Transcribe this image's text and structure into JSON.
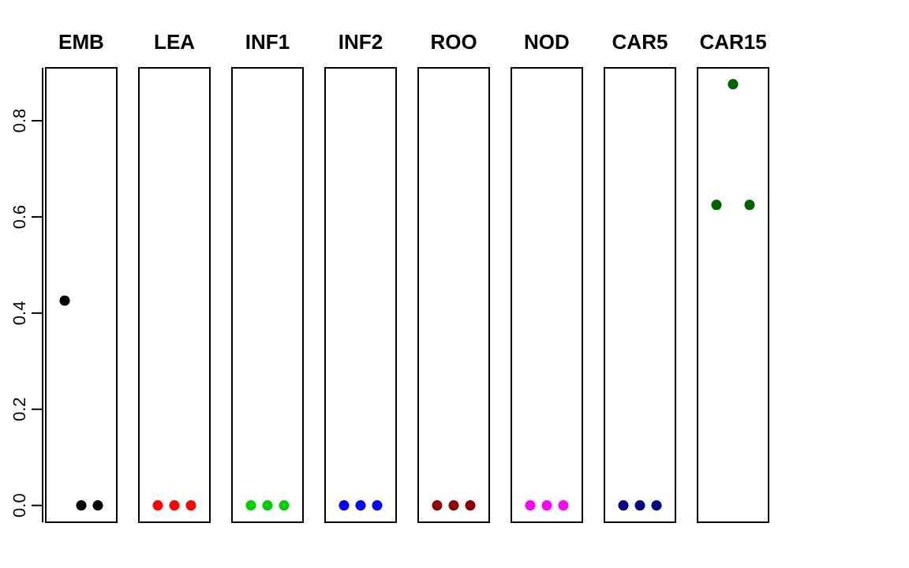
{
  "chart_data": {
    "type": "scatter",
    "categories": [
      "EMB",
      "LEA",
      "INF1",
      "INF2",
      "ROO",
      "NOD",
      "CAR5",
      "CAR15"
    ],
    "series": [
      {
        "colors": [
          "#000000",
          "#ff0000",
          "#00cd00",
          "#0000ff",
          "#8b0000",
          "#ff00ff",
          "#000080",
          "#006400"
        ],
        "values": [
          0.426,
          0,
          0,
          0,
          0,
          0,
          0,
          0.625
        ]
      },
      {
        "colors": [
          "#000000",
          "#ff0000",
          "#00cd00",
          "#0000ff",
          "#8b0000",
          "#ff00ff",
          "#000080",
          "#006400"
        ],
        "values": [
          0,
          0,
          0,
          0,
          0,
          0,
          0,
          0.876
        ]
      },
      {
        "colors": [
          "#000000",
          "#ff0000",
          "#00cd00",
          "#0000ff",
          "#8b0000",
          "#ff00ff",
          "#000080",
          "#006400"
        ],
        "values": [
          0,
          0,
          0,
          0,
          0,
          0,
          0,
          0.625
        ]
      }
    ],
    "ylim": [
      -0.035,
      0.91
    ],
    "yticks": [
      {
        "value": 0,
        "label": "0.0"
      },
      0.2,
      0.4,
      0.6,
      0.8
    ],
    "marker": "circle"
  }
}
